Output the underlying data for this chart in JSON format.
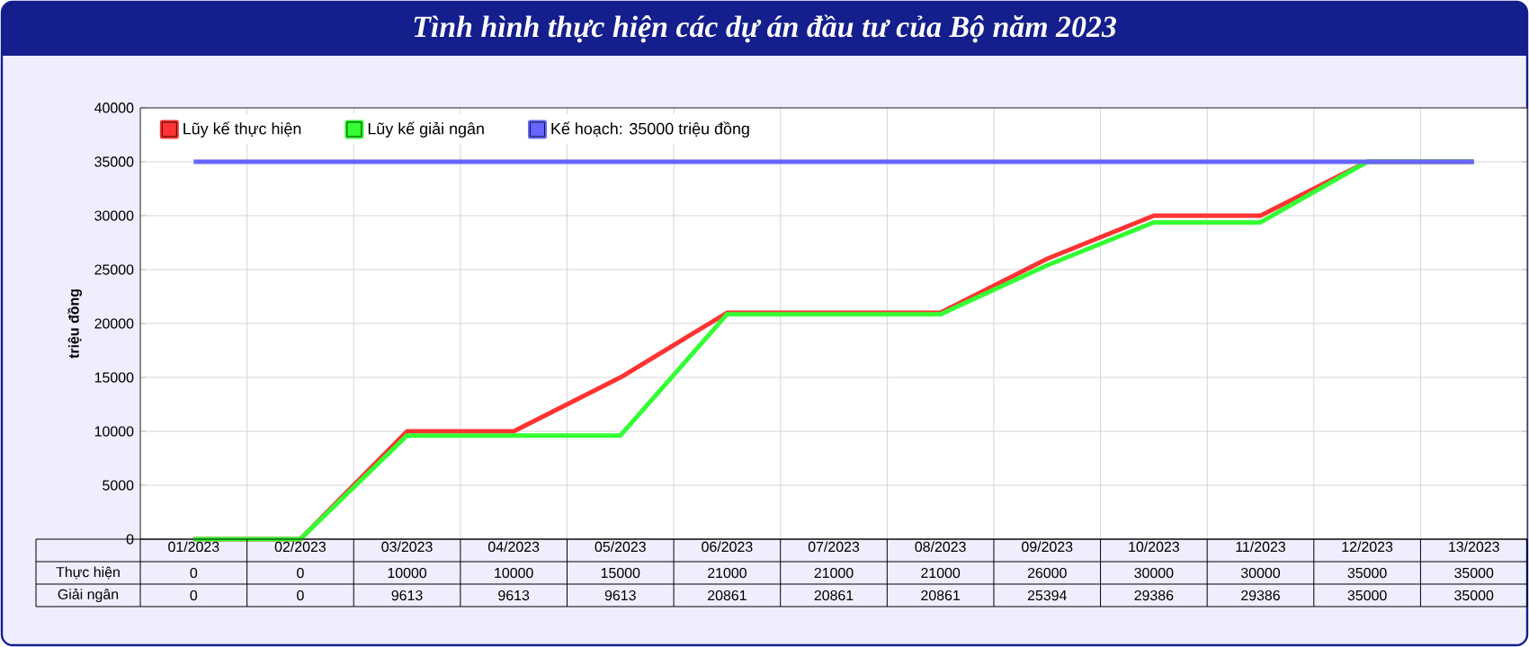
{
  "chart_data": {
    "type": "line",
    "title": "Tình hình thực hiện các dự án đầu tư của Bộ năm 2023",
    "ylabel": "triệu đồng",
    "categories": [
      "01/2023",
      "02/2023",
      "03/2023",
      "04/2023",
      "05/2023",
      "06/2023",
      "07/2023",
      "08/2023",
      "09/2023",
      "10/2023",
      "11/2023",
      "12/2023",
      "13/2023"
    ],
    "series": [
      {
        "name": "Lũy kế thực hiện",
        "color": "#ff3333",
        "values": [
          0,
          0,
          10000,
          10000,
          15000,
          21000,
          21000,
          21000,
          26000,
          30000,
          30000,
          35000,
          35000
        ],
        "value_labels": [
          "0",
          "0",
          "10000",
          "10000",
          "15000",
          "21000",
          "21000",
          "21000",
          "26000",
          "30000",
          "30000",
          "35000",
          "35000"
        ]
      },
      {
        "name": "Lũy kế giải ngân",
        "color": "#33ff33",
        "values": [
          0,
          0,
          9613,
          9613,
          9613,
          20861,
          20861,
          20861,
          25394,
          29386,
          29386,
          35000,
          35000
        ],
        "value_labels": [
          "0",
          "0",
          "9613",
          "9613",
          "9613",
          "20861",
          "20861",
          "20861",
          "25394",
          "29386",
          "29386",
          "35000",
          "35000"
        ]
      },
      {
        "name": "Kế hoạch: 35000 triệu đồng",
        "color": "#6666ff",
        "values": [
          35000,
          35000,
          35000,
          35000,
          35000,
          35000,
          35000,
          35000,
          35000,
          35000,
          35000,
          35000,
          35000
        ]
      }
    ],
    "ylim": [
      0,
      40000
    ],
    "yticks": [
      0,
      5000,
      10000,
      15000,
      20000,
      25000,
      30000,
      35000,
      40000
    ],
    "grid": true,
    "legend": "top left",
    "annotations": [
      "Thực hiện",
      "Giải ngân"
    ]
  }
}
